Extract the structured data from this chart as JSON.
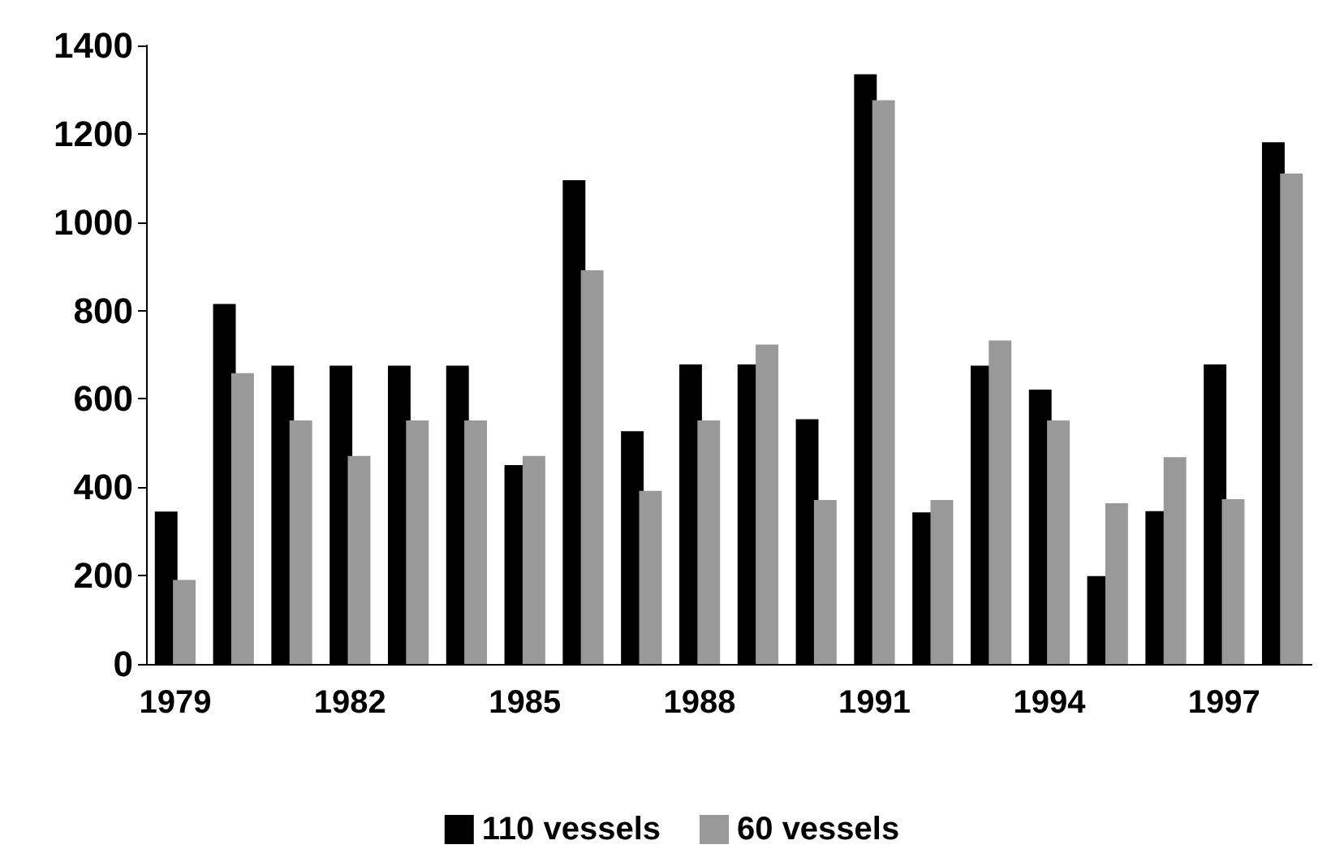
{
  "chart_data": {
    "type": "bar",
    "categories": [
      "1979",
      null,
      null,
      "1982",
      null,
      null,
      "1985",
      null,
      null,
      "1988",
      null,
      null,
      "1991",
      null,
      null,
      "1994",
      null,
      null,
      "1997",
      null
    ],
    "series": [
      {
        "name": "110 vessels",
        "color": "#000000",
        "values": [
          345,
          815,
          675,
          675,
          675,
          675,
          450,
          1095,
          527,
          678,
          678,
          554,
          1335,
          343,
          675,
          621,
          199,
          346,
          678,
          1181
        ]
      },
      {
        "name": "60 vessels",
        "color": "#999999",
        "values": [
          190,
          658,
          551,
          471,
          551,
          551,
          471,
          891,
          392,
          551,
          723,
          371,
          1276,
          371,
          732,
          551,
          364,
          468,
          373,
          1110
        ]
      }
    ],
    "ylim": [
      0,
      1400
    ],
    "yticks": [
      0,
      200,
      400,
      600,
      800,
      1000,
      1200,
      1400
    ],
    "grid": false,
    "legend": "bottom"
  }
}
